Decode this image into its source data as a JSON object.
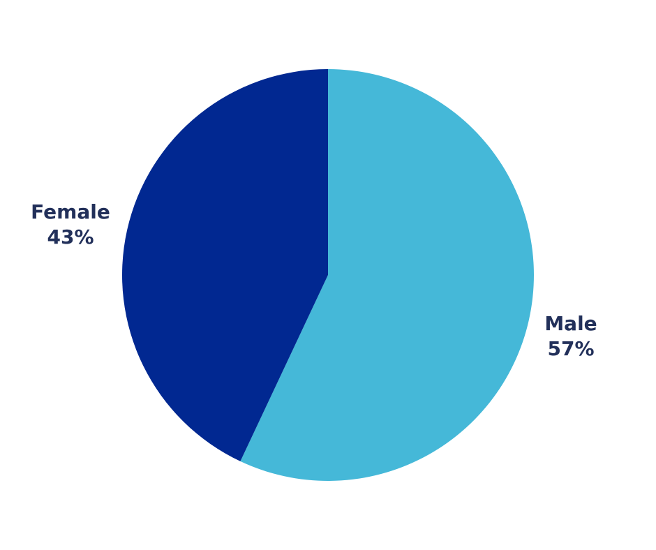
{
  "chart_data": {
    "type": "pie",
    "title": "",
    "series": [
      {
        "values": [
          {
            "label": "Male",
            "value": 57,
            "display": "57%"
          },
          {
            "label": "Female",
            "value": 43,
            "display": "43%"
          }
        ]
      }
    ],
    "legend": "none",
    "grid": false
  },
  "colors": {
    "male": "#45b8d8",
    "female": "#012891",
    "label_text": "#22305a",
    "background": "#ffffff"
  }
}
